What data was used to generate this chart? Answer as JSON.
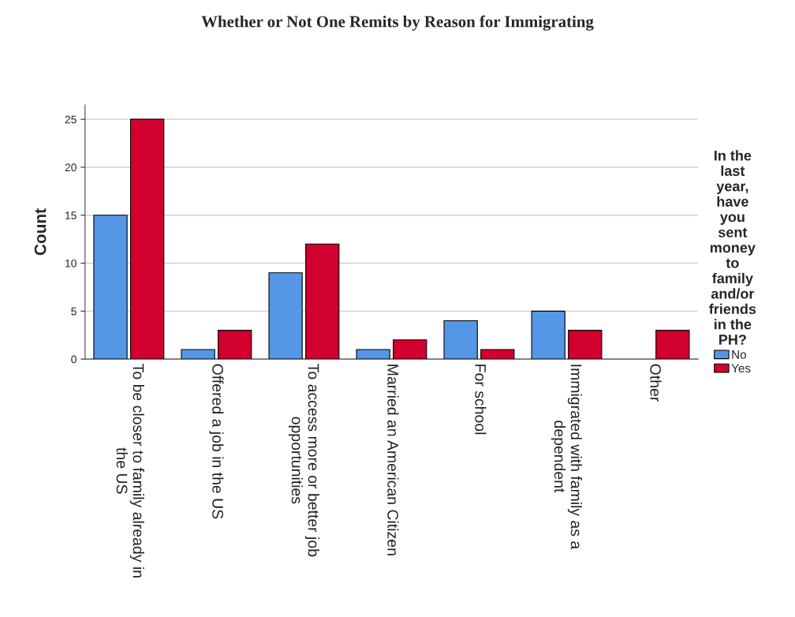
{
  "chart_data": {
    "type": "bar",
    "title": "Whether or Not One Remits by Reason for Immigrating",
    "ylabel": "Count",
    "categories": [
      "To be closer to family already in the US",
      "Offered a job in the US",
      "To access more or better job opportunities",
      "Married an American Citizen",
      "For school",
      "Immigrated with family as a dependent",
      "Other"
    ],
    "series": [
      {
        "name": "No",
        "color": "#5596e6",
        "values": [
          15,
          1,
          9,
          1,
          4,
          5,
          null
        ]
      },
      {
        "name": "Yes",
        "color": "#d1002f",
        "values": [
          25,
          3,
          12,
          2,
          1,
          3,
          3
        ]
      }
    ],
    "legend_title": "In the last year, have you sent money to family and/or friends in the PH?",
    "ylim": [
      0,
      26.5
    ],
    "yticks": [
      0,
      5,
      10,
      15,
      20,
      25
    ],
    "grid": "y",
    "legend": "right"
  }
}
